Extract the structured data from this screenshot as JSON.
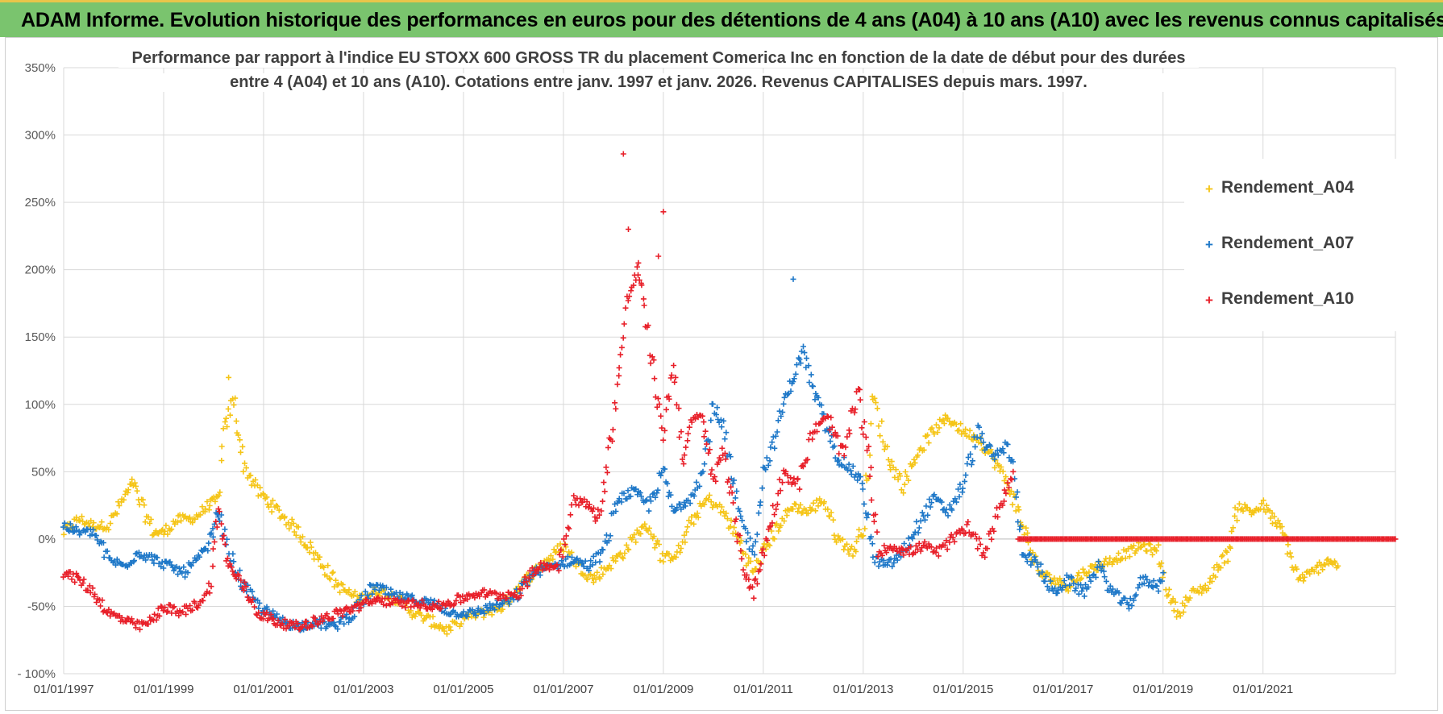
{
  "header": {
    "title": "ADAM Informe. Evolution historique des performances en euros pour des détentions de 4 ans (A04) à 10 ans (A10) avec les revenus connus capitalisés"
  },
  "chart_data": {
    "type": "scatter",
    "title_line1": "Performance par rapport à l'indice EU STOXX 600 GROSS TR  du placement Comerica Inc en fonction de la date de début pour des durées",
    "title_line2": "entre 4 (A04) et 10 ans (A10). Cotations entre janv. 1997 et janv. 2026. Revenus CAPITALISES depuis mars. 1997.",
    "x_range": [
      1997.0,
      2023.65
    ],
    "ylim": [
      -100,
      350
    ],
    "y_ticks": [
      -100,
      -50,
      0,
      50,
      100,
      150,
      200,
      250,
      300,
      350
    ],
    "y_tick_labels": [
      "- 100%",
      "-50%",
      "0%",
      "50%",
      "100%",
      "150%",
      "200%",
      "250%",
      "300%",
      "350%"
    ],
    "x_ticks": [
      1997,
      1999,
      2001,
      2003,
      2005,
      2007,
      2009,
      2011,
      2013,
      2015,
      2017,
      2019,
      2021
    ],
    "x_tick_labels": [
      "01/01/1997",
      "01/01/1999",
      "01/01/2001",
      "01/01/2003",
      "01/01/2005",
      "01/01/2007",
      "01/01/2009",
      "01/01/2011",
      "01/01/2013",
      "01/01/2015",
      "01/01/2017",
      "01/01/2019",
      "01/01/2021"
    ],
    "legend_position": "right",
    "series": [
      {
        "name": "Rendement_A04",
        "color": "#f5c518",
        "x": [
          1997.0,
          1997.3,
          1997.6,
          1997.9,
          1998.2,
          1998.4,
          1998.5,
          1998.8,
          1999.0,
          1999.3,
          1999.6,
          1999.9,
          2000.1,
          2000.2,
          2000.4,
          2000.6,
          2000.9,
          2001.3,
          2001.7,
          2002.1,
          2002.5,
          2002.9,
          2003.3,
          2003.7,
          2004.0,
          2004.3,
          2004.7,
          2005.0,
          2005.4,
          2005.8,
          2006.1,
          2006.4,
          2006.7,
          2007.0,
          2007.3,
          2007.6,
          2007.9,
          2008.2,
          2008.5,
          2008.7,
          2009.0,
          2009.3,
          2009.6,
          2009.9,
          2010.2,
          2010.5,
          2010.8,
          2011.0,
          2011.3,
          2011.6,
          2011.9,
          2012.2,
          2012.5,
          2012.8,
          2013.0,
          2013.2,
          2013.5,
          2013.8,
          2014.1,
          2014.4,
          2014.7,
          2015.0,
          2015.3,
          2015.6,
          2015.9,
          2016.2,
          2016.5,
          2016.8,
          2017.1,
          2017.4,
          2017.7,
          2018.0,
          2018.3,
          2018.6,
          2018.9,
          2019.1,
          2019.3,
          2019.6,
          2019.9,
          2020.1,
          2020.3,
          2020.5,
          2020.8,
          2021.0,
          2021.2,
          2021.4,
          2021.7,
          2022.0,
          2022.3,
          2022.5
        ],
        "y": [
          5,
          15,
          10,
          10,
          30,
          42,
          30,
          5,
          5,
          15,
          15,
          25,
          30,
          78,
          105,
          55,
          35,
          20,
          5,
          -15,
          -35,
          -45,
          -38,
          -45,
          -55,
          -60,
          -68,
          -58,
          -55,
          -50,
          -35,
          -25,
          -15,
          -5,
          -20,
          -30,
          -20,
          -10,
          5,
          10,
          -15,
          -10,
          15,
          30,
          20,
          0,
          -25,
          -10,
          10,
          25,
          20,
          30,
          0,
          -10,
          10,
          105,
          60,
          40,
          65,
          80,
          90,
          80,
          75,
          60,
          40,
          10,
          -25,
          -30,
          -35,
          -25,
          -20,
          -15,
          -10,
          -5,
          -10,
          -40,
          -55,
          -40,
          -35,
          -20,
          -10,
          25,
          20,
          25,
          15,
          5,
          -30,
          -25,
          -15,
          -20
        ]
      },
      {
        "name": "Rendement_A07",
        "color": "#1f78c8",
        "x": [
          1997.0,
          1997.3,
          1997.6,
          1997.9,
          1998.2,
          1998.5,
          1998.8,
          1999.1,
          1999.4,
          1999.7,
          1999.9,
          2000.1,
          2000.3,
          2000.6,
          2000.9,
          2001.3,
          2001.7,
          2002.0,
          2002.4,
          2002.8,
          2003.2,
          2003.6,
          2004.0,
          2004.4,
          2004.8,
          2005.2,
          2005.6,
          2006.0,
          2006.4,
          2006.8,
          2007.2,
          2007.5,
          2007.8,
          2008.1,
          2008.4,
          2008.7,
          2009.0,
          2009.2,
          2009.5,
          2009.8,
          2010.0,
          2010.2,
          2010.5,
          2010.8,
          2011.0,
          2011.2,
          2011.4,
          2011.6,
          2011.8,
          2012.0,
          2012.3,
          2012.5,
          2012.8,
          2013.0,
          2013.2,
          2013.5,
          2013.8,
          2014.1,
          2014.4,
          2014.7,
          2015.0,
          2015.3,
          2015.6,
          2015.9,
          2016.0,
          2016.2,
          2016.5,
          2016.8,
          2017.1,
          2017.4,
          2017.7,
          2018.0,
          2018.3,
          2018.6,
          2018.9,
          2019.0
        ],
        "y": [
          10,
          5,
          5,
          -15,
          -20,
          -10,
          -15,
          -20,
          -25,
          -15,
          -5,
          20,
          -10,
          -35,
          -50,
          -60,
          -65,
          -62,
          -65,
          -55,
          -35,
          -42,
          -45,
          -48,
          -55,
          -55,
          -50,
          -45,
          -25,
          -20,
          -15,
          -20,
          -10,
          30,
          35,
          25,
          50,
          20,
          30,
          50,
          100,
          80,
          20,
          -10,
          50,
          70,
          100,
          120,
          140,
          110,
          80,
          60,
          50,
          40,
          -15,
          -20,
          -10,
          10,
          30,
          20,
          40,
          80,
          60,
          70,
          50,
          -10,
          -20,
          -40,
          -30,
          -40,
          -20,
          -40,
          -50,
          -30,
          -35,
          -25
        ]
      },
      {
        "name": "Rendement_A10",
        "color": "#e8202a",
        "x": [
          1997.0,
          1997.3,
          1997.6,
          1997.9,
          1998.2,
          1998.5,
          1998.8,
          1999.0,
          1999.3,
          1999.6,
          1999.9,
          2000.1,
          2000.3,
          2000.6,
          2000.9,
          2001.3,
          2001.7,
          2002.1,
          2002.5,
          2002.9,
          2003.3,
          2003.7,
          2004.1,
          2004.5,
          2004.9,
          2005.3,
          2005.7,
          2006.1,
          2006.5,
          2006.9,
          2007.2,
          2007.5,
          2007.7,
          2007.9,
          2008.1,
          2008.3,
          2008.5,
          2008.7,
          2008.9,
          2009.0,
          2009.2,
          2009.4,
          2009.6,
          2009.8,
          2010.0,
          2010.2,
          2010.4,
          2010.6,
          2010.8,
          2011.0,
          2011.2,
          2011.4,
          2011.7,
          2012.0,
          2012.3,
          2012.6,
          2012.9,
          2013.1,
          2013.3,
          2013.6,
          2013.9,
          2014.2,
          2014.5,
          2014.8,
          2015.1,
          2015.4,
          2015.7,
          2016.0
        ],
        "y": [
          -25,
          -30,
          -40,
          -55,
          -60,
          -65,
          -60,
          -50,
          -55,
          -50,
          -40,
          20,
          -20,
          -35,
          -55,
          -62,
          -65,
          -60,
          -55,
          -50,
          -45,
          -48,
          -48,
          -50,
          -45,
          -40,
          -42,
          -40,
          -20,
          -20,
          30,
          25,
          15,
          60,
          120,
          180,
          200,
          150,
          100,
          80,
          130,
          60,
          90,
          90,
          40,
          70,
          20,
          -20,
          -40,
          -10,
          20,
          50,
          40,
          80,
          90,
          60,
          110,
          60,
          -10,
          -5,
          -10,
          -5,
          -10,
          0,
          10,
          -10,
          20,
          50
        ]
      },
      {
        "name": "Rendement_A10 (0% line)",
        "color": "#e8202a",
        "x": [
          2016.1,
          2023.65
        ],
        "y": [
          0,
          0
        ]
      }
    ]
  },
  "legend": {
    "items": [
      {
        "label": "Rendement_A04",
        "color": "#f5c518"
      },
      {
        "label": "Rendement_A07",
        "color": "#1f78c8"
      },
      {
        "label": "Rendement_A10",
        "color": "#e8202a"
      }
    ]
  }
}
